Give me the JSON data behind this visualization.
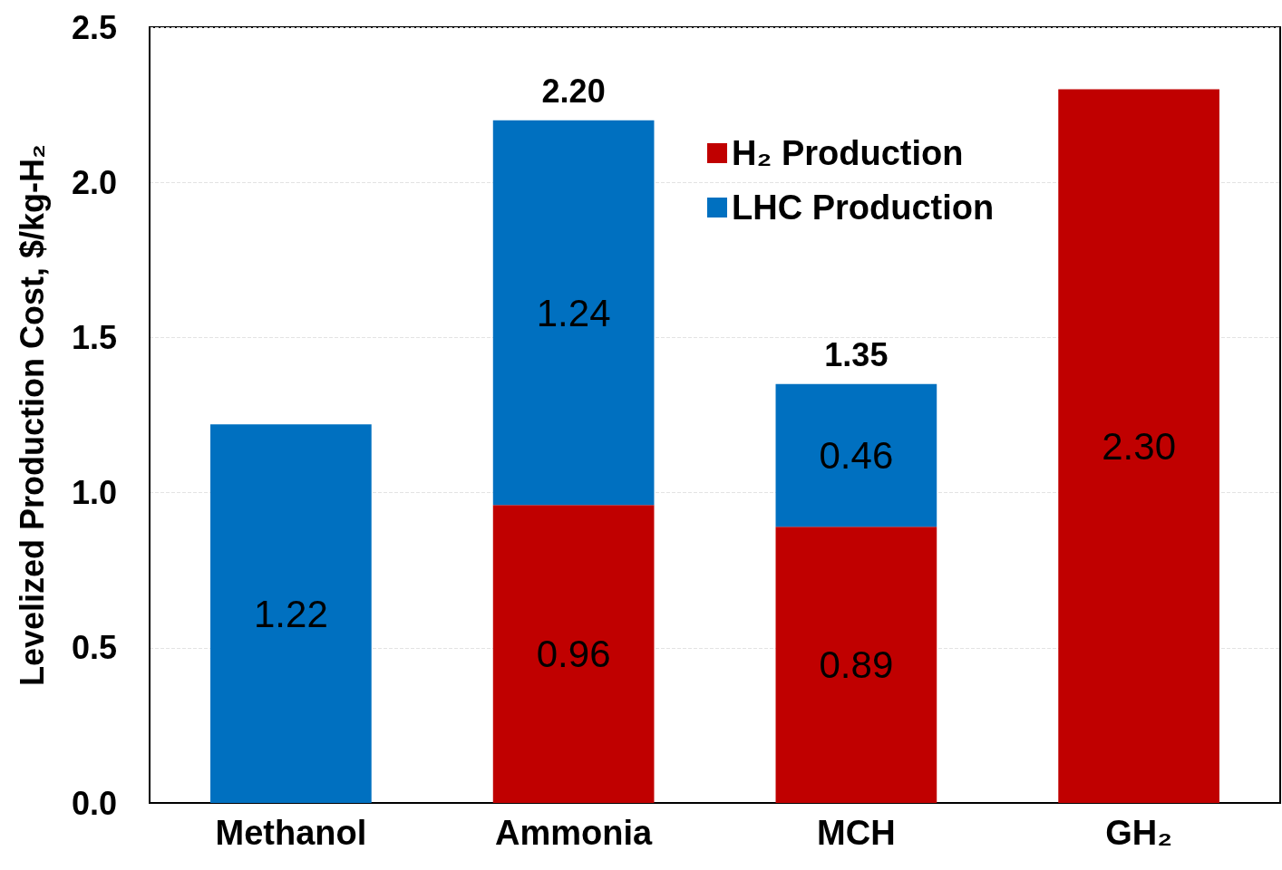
{
  "chart_data": {
    "type": "bar",
    "stacked": true,
    "ylabel": "Levelized Production Cost, $/kg-H₂",
    "categories": [
      "Methanol",
      "Ammonia",
      "MCH",
      "GH₂"
    ],
    "series": [
      {
        "name": "H₂ Production",
        "color": "#c00000",
        "values": [
          null,
          0.96,
          0.89,
          2.3
        ],
        "value_labels": [
          null,
          "0.96",
          "0.89",
          "2.30"
        ]
      },
      {
        "name": "LHC Production",
        "color": "#0070c0",
        "values": [
          1.22,
          1.24,
          0.46,
          null
        ],
        "value_labels": [
          "1.22",
          "1.24",
          "0.46",
          null
        ]
      }
    ],
    "totals": [
      null,
      "2.20",
      "1.35",
      null
    ],
    "ylim": [
      0,
      2.5
    ],
    "yticks": [
      {
        "value": 0,
        "label": "0.0"
      },
      0.5,
      {
        "value": 1,
        "label": "1.0"
      },
      1.5,
      {
        "value": 2,
        "label": "2.0"
      },
      2.5
    ],
    "grid": "y",
    "legend": "top right"
  }
}
